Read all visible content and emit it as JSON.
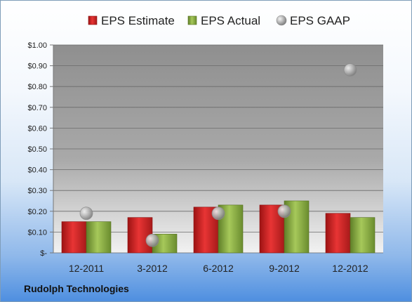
{
  "company": "Rudolph Technologies",
  "chart_data": {
    "type": "bar",
    "title": "",
    "xlabel": "",
    "ylabel": "",
    "categories": [
      "12-2011",
      "3-2012",
      "6-2012",
      "9-2012",
      "12-2012"
    ],
    "series": [
      {
        "name": "EPS Estimate",
        "kind": "bar",
        "color": "#d42a2a",
        "values": [
          0.15,
          0.17,
          0.22,
          0.23,
          0.19
        ]
      },
      {
        "name": "EPS Actual",
        "kind": "bar",
        "color": "#8cb04a",
        "values": [
          0.15,
          0.09,
          0.23,
          0.25,
          0.17
        ]
      },
      {
        "name": "EPS GAAP",
        "kind": "marker",
        "color": "#9a9a9a",
        "values": [
          0.19,
          0.06,
          0.19,
          0.2,
          0.88
        ]
      }
    ],
    "ylim": [
      0,
      1.0
    ],
    "yticks": [
      0,
      0.1,
      0.2,
      0.3,
      0.4,
      0.5,
      0.6,
      0.7,
      0.8,
      0.9,
      1.0
    ],
    "ytick_labels": [
      "$-",
      "$0.10",
      "$0.20",
      "$0.30",
      "$0.40",
      "$0.50",
      "$0.60",
      "$0.70",
      "$0.80",
      "$0.90",
      "$1.00"
    ],
    "grid": true,
    "legend_position": "top"
  }
}
